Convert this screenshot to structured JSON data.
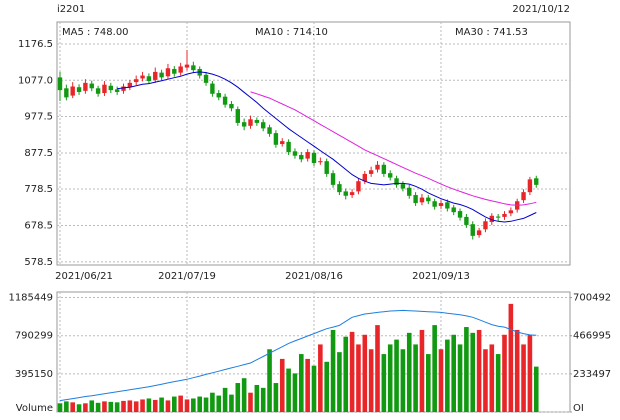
{
  "header": {
    "symbol": "i2201",
    "date": "2021/10/12"
  },
  "chart_data": [
    {
      "type": "candlestick",
      "categories": [
        "2021/06/21",
        null,
        null,
        null,
        null,
        null,
        null,
        null,
        null,
        null,
        null,
        null,
        null,
        null,
        null,
        null,
        null,
        null,
        null,
        null,
        "2021/07/19",
        null,
        null,
        null,
        null,
        null,
        null,
        null,
        null,
        null,
        null,
        null,
        null,
        null,
        null,
        null,
        null,
        null,
        null,
        null,
        "2021/08/16",
        null,
        null,
        null,
        null,
        null,
        null,
        null,
        null,
        null,
        null,
        null,
        null,
        null,
        null,
        null,
        null,
        null,
        null,
        null,
        "2021/09/13",
        null,
        null,
        null,
        null,
        null,
        null,
        null,
        null,
        null,
        null,
        null,
        null,
        null,
        null,
        null
      ],
      "open": [
        1085,
        1055,
        1035,
        1058,
        1048,
        1068,
        1055,
        1042,
        1062,
        1052,
        1048,
        1058,
        1072,
        1082,
        1088,
        1078,
        1098,
        1088,
        1108,
        1098,
        1112,
        1118,
        1108,
        1092,
        1068,
        1042,
        1032,
        1012,
        998,
        962,
        952,
        968,
        962,
        948,
        932,
        902,
        908,
        882,
        872,
        862,
        878,
        852,
        855,
        822,
        792,
        772,
        762,
        772,
        800,
        820,
        832,
        845,
        822,
        808,
        792,
        782,
        762,
        742,
        755,
        745,
        732,
        742,
        728,
        718,
        702,
        682,
        652,
        668,
        688,
        703,
        702,
        712,
        722,
        748,
        770,
        808
      ],
      "high": [
        1100,
        1065,
        1072,
        1066,
        1080,
        1076,
        1062,
        1075,
        1070,
        1060,
        1068,
        1078,
        1090,
        1100,
        1096,
        1112,
        1106,
        1122,
        1116,
        1125,
        1160,
        1128,
        1115,
        1100,
        1075,
        1050,
        1040,
        1020,
        1005,
        972,
        980,
        975,
        970,
        955,
        940,
        918,
        915,
        890,
        880,
        888,
        885,
        865,
        862,
        830,
        800,
        780,
        778,
        808,
        828,
        840,
        855,
        852,
        830,
        815,
        800,
        790,
        770,
        765,
        762,
        752,
        748,
        750,
        735,
        725,
        710,
        690,
        672,
        698,
        712,
        710,
        718,
        728,
        752,
        778,
        812,
        815
      ],
      "low": [
        1020,
        1022,
        1028,
        1037,
        1040,
        1047,
        1032,
        1034,
        1042,
        1037,
        1040,
        1050,
        1064,
        1074,
        1067,
        1070,
        1078,
        1080,
        1087,
        1090,
        1104,
        1098,
        1082,
        1062,
        1032,
        1022,
        1002,
        992,
        952,
        940,
        944,
        952,
        937,
        922,
        892,
        895,
        872,
        862,
        852,
        854,
        842,
        845,
        812,
        782,
        762,
        750,
        754,
        764,
        792,
        812,
        824,
        812,
        802,
        782,
        772,
        752,
        732,
        734,
        737,
        722,
        724,
        717,
        707,
        692,
        672,
        640,
        645,
        660,
        680,
        690,
        694,
        704,
        714,
        740,
        762,
        782
      ],
      "close": [
        1050,
        1030,
        1060,
        1045,
        1070,
        1055,
        1040,
        1065,
        1050,
        1045,
        1060,
        1070,
        1080,
        1090,
        1075,
        1100,
        1085,
        1110,
        1095,
        1115,
        1120,
        1105,
        1090,
        1070,
        1040,
        1030,
        1010,
        1000,
        960,
        950,
        970,
        960,
        945,
        930,
        900,
        910,
        880,
        870,
        860,
        880,
        850,
        855,
        820,
        790,
        770,
        760,
        770,
        800,
        820,
        830,
        845,
        820,
        810,
        790,
        780,
        760,
        740,
        755,
        745,
        730,
        740,
        725,
        715,
        700,
        680,
        650,
        665,
        690,
        705,
        700,
        710,
        720,
        745,
        770,
        805,
        790
      ],
      "up_color": "#e8262a",
      "down_color": "#119911",
      "ylim": [
        570,
        1237
      ],
      "yticks": [
        578.5,
        678.5,
        778.5,
        877.5,
        977.5,
        {
          "value": 1077,
          "label": "1077.0"
        },
        1176.5
      ],
      "ma_labels": [
        {
          "label": "MA5 : 748.00",
          "color": "#000000"
        },
        {
          "label": "MA10 : 714.10",
          "color": "#0000cc"
        },
        {
          "label": "MA30 : 741.53",
          "color": "#e020e0"
        }
      ],
      "lines": [
        {
          "color": "#0000cc",
          "values": [
            null,
            null,
            null,
            null,
            null,
            null,
            null,
            null,
            null,
            1054,
            1056,
            1058,
            1062,
            1066,
            1068,
            1072,
            1076,
            1080,
            1084,
            1088,
            1094,
            1098,
            1100,
            1098,
            1094,
            1088,
            1080,
            1070,
            1058,
            1044,
            1030,
            1016,
            1000,
            986,
            972,
            958,
            944,
            932,
            920,
            908,
            896,
            884,
            872,
            860,
            846,
            832,
            818,
            808,
            800,
            794,
            792,
            790,
            792,
            794,
            794,
            792,
            786,
            778,
            768,
            760,
            752,
            746,
            740,
            736,
            730,
            722,
            712,
            702,
            694,
            690,
            688,
            690,
            694,
            698,
            706,
            714
          ]
        },
        {
          "color": "#e020e0",
          "values": [
            null,
            null,
            null,
            null,
            null,
            null,
            null,
            null,
            null,
            null,
            null,
            null,
            null,
            null,
            null,
            null,
            null,
            null,
            null,
            null,
            null,
            null,
            null,
            null,
            null,
            null,
            null,
            null,
            null,
            null,
            1045,
            1040,
            1034,
            1028,
            1020,
            1012,
            1004,
            996,
            986,
            976,
            966,
            956,
            946,
            936,
            926,
            916,
            906,
            896,
            886,
            878,
            870,
            862,
            854,
            846,
            838,
            830,
            822,
            815,
            808,
            800,
            792,
            785,
            778,
            772,
            766,
            760,
            755,
            750,
            746,
            742,
            738,
            735,
            734,
            735,
            738,
            742
          ]
        }
      ],
      "grid": true
    },
    {
      "type": "bar",
      "values": [
        90000,
        110000,
        100000,
        80000,
        90000,
        120000,
        95000,
        110000,
        105000,
        100000,
        115000,
        120000,
        110000,
        130000,
        140000,
        125000,
        150000,
        120000,
        160000,
        170000,
        130000,
        140000,
        160000,
        150000,
        200000,
        170000,
        250000,
        180000,
        300000,
        350000,
        200000,
        280000,
        250000,
        650000,
        300000,
        550000,
        450000,
        400000,
        600000,
        550000,
        480000,
        700000,
        520000,
        850000,
        620000,
        780000,
        830000,
        700000,
        800000,
        650000,
        900000,
        600000,
        700000,
        750000,
        650000,
        820000,
        700000,
        850000,
        600000,
        900000,
        650000,
        750000,
        800000,
        700000,
        880000,
        820000,
        850000,
        650000,
        700000,
        600000,
        800000,
        1120000,
        850000,
        700000,
        800000,
        470000
      ],
      "ylim": [
        0,
        1243000
      ],
      "yticks": [
        {
          "value": 0,
          "label": "Volume"
        },
        395150,
        790299,
        1185449
      ],
      "series": [
        {
          "axis": "y2",
          "color": "#1e7fe0",
          "values": [
            70000,
            76000,
            82000,
            88000,
            95000,
            100000,
            106000,
            112000,
            118000,
            124000,
            130000,
            136000,
            142000,
            148000,
            155000,
            162000,
            170000,
            178000,
            186000,
            193000,
            200000,
            210000,
            220000,
            230000,
            240000,
            250000,
            260000,
            270000,
            280000,
            290000,
            300000,
            320000,
            340000,
            360000,
            380000,
            400000,
            420000,
            435000,
            450000,
            465000,
            480000,
            495000,
            510000,
            520000,
            530000,
            555000,
            580000,
            590000,
            600000,
            605000,
            610000,
            614000,
            618000,
            620000,
            622000,
            620000,
            618000,
            616000,
            614000,
            612000,
            610000,
            605000,
            600000,
            595000,
            588000,
            580000,
            565000,
            550000,
            535000,
            525000,
            520000,
            505000,
            490000,
            480000,
            472000,
            470000
          ]
        }
      ],
      "y2lim": [
        0,
        734600
      ],
      "y2ticks": [
        {
          "value": 0,
          "label": "OI"
        },
        233497,
        466995,
        700492
      ]
    }
  ]
}
